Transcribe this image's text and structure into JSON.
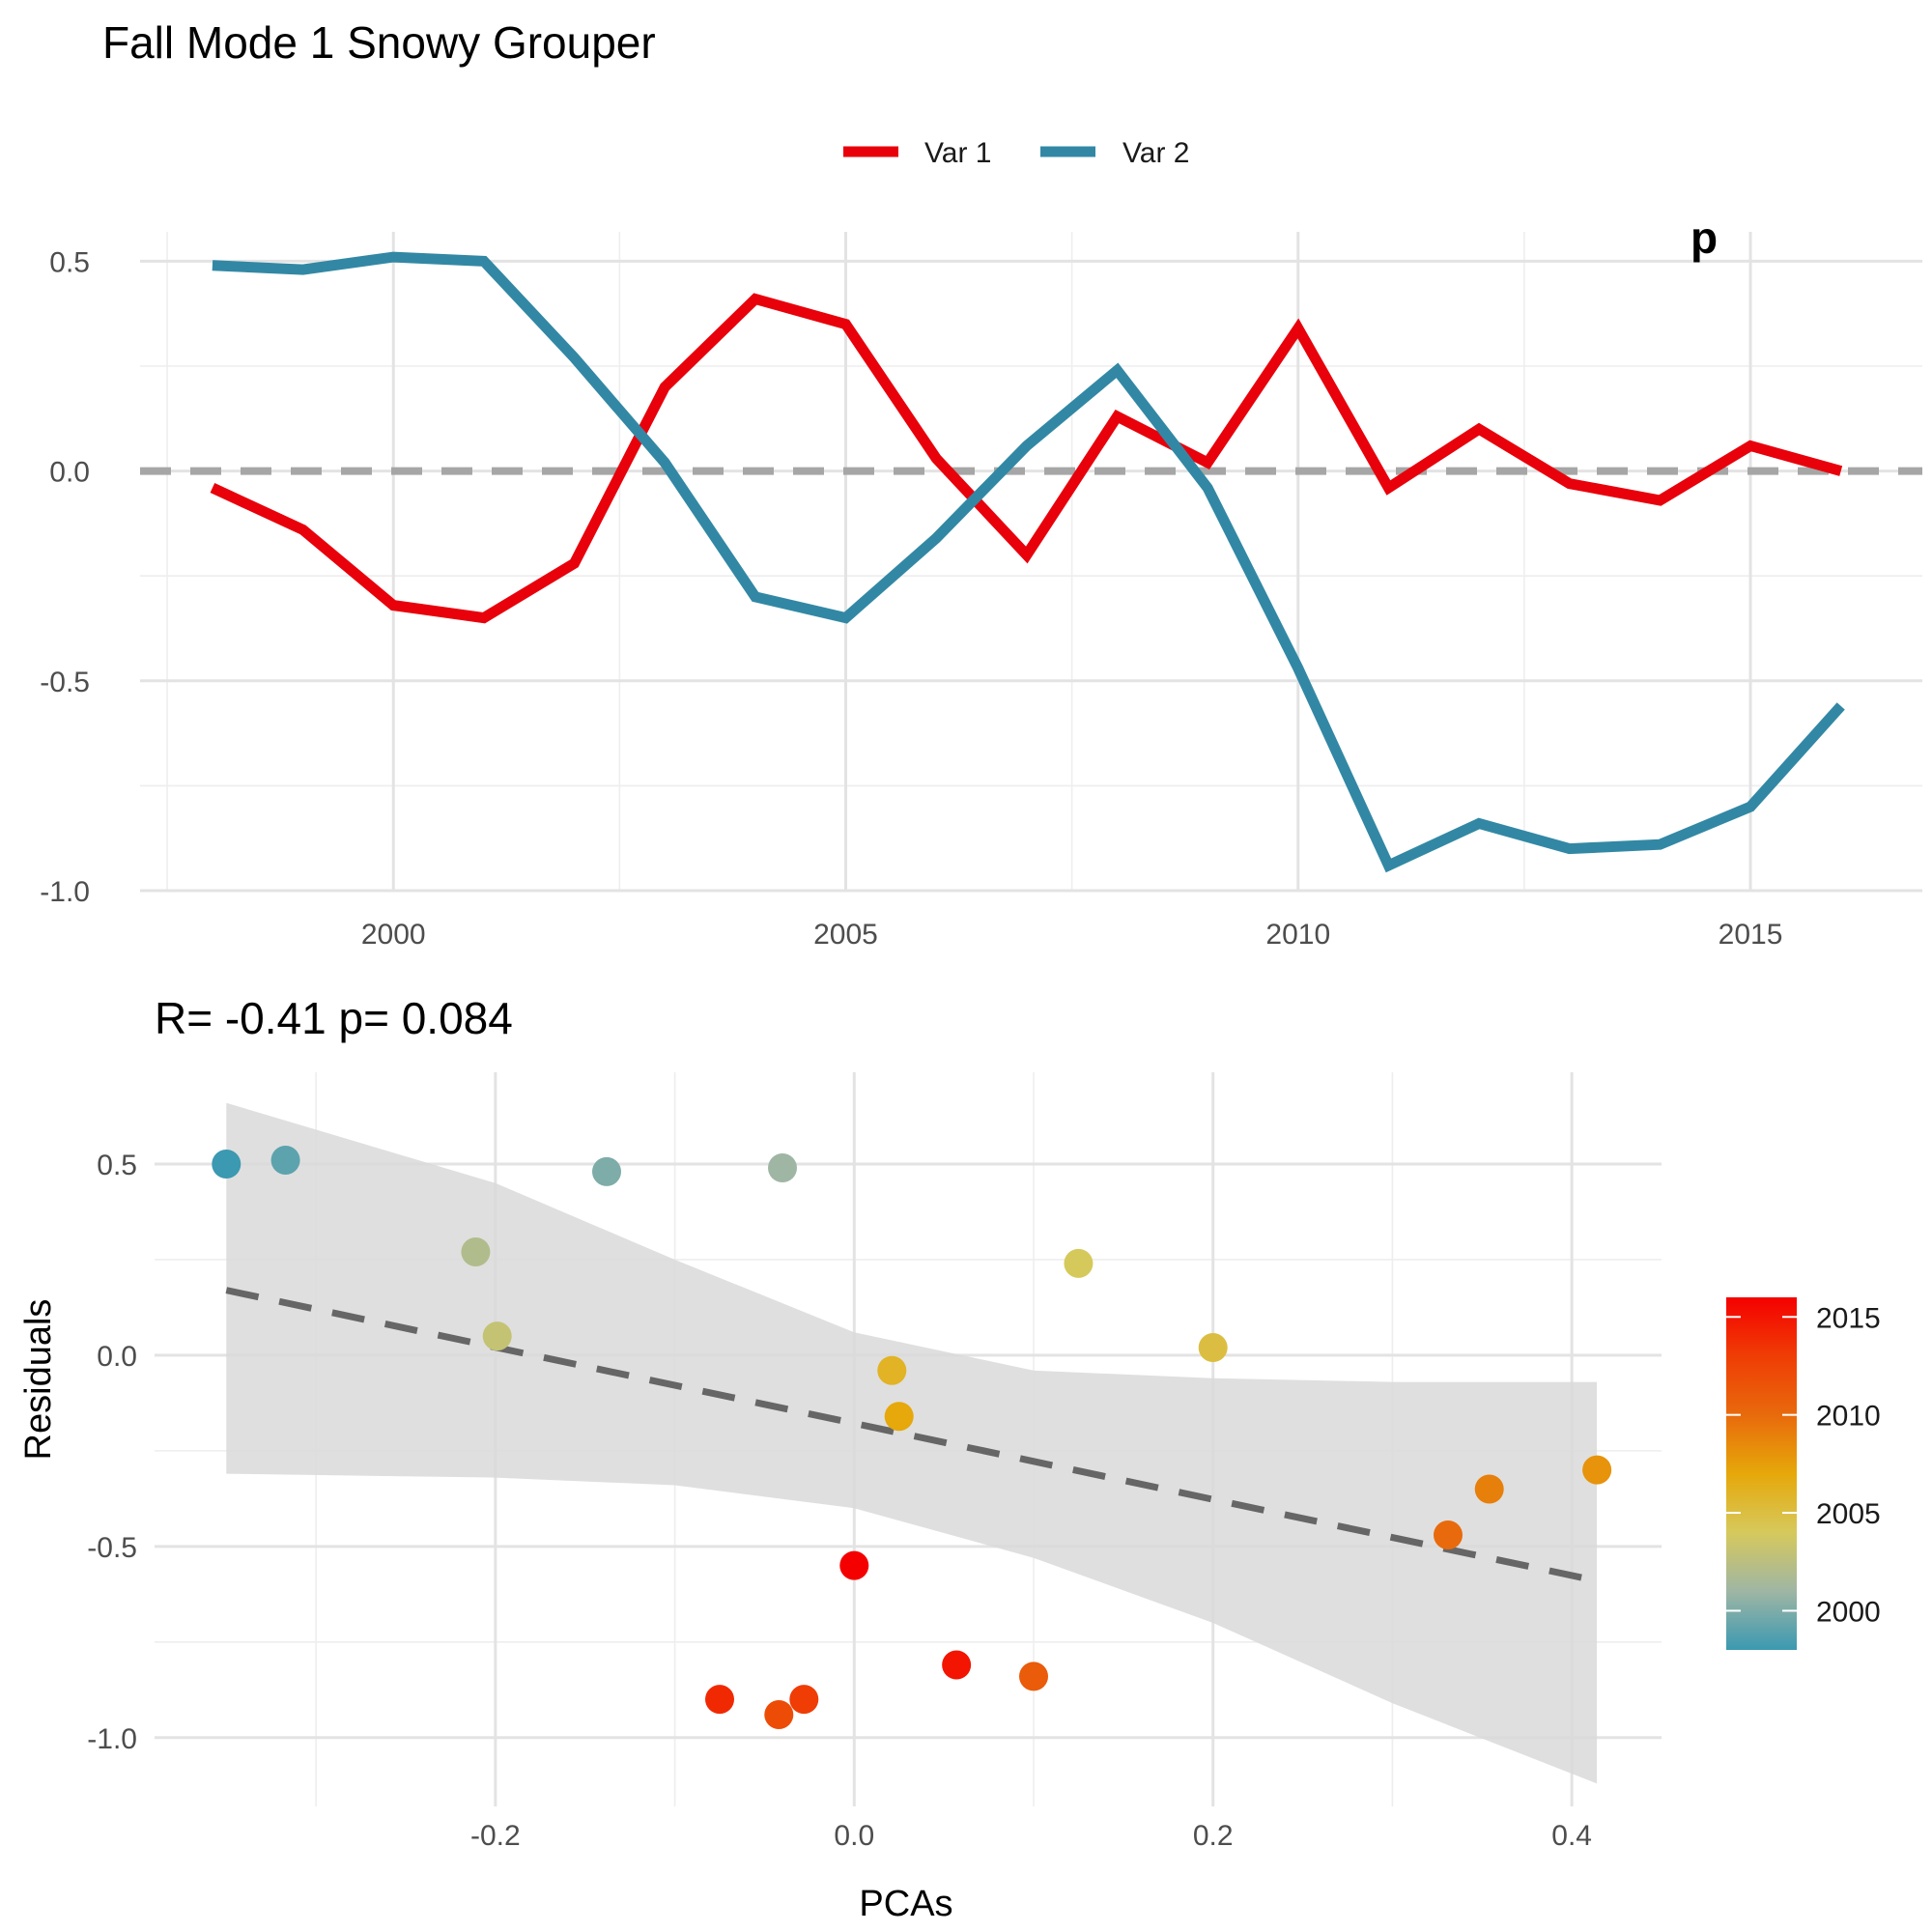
{
  "chart_data": [
    {
      "type": "line",
      "title": "Fall Mode 1 Snowy Grouper",
      "corner_text": "p",
      "x": [
        1998,
        1999,
        2000,
        2001,
        2002,
        2003,
        2004,
        2005,
        2006,
        2007,
        2008,
        2009,
        2010,
        2011,
        2012,
        2013,
        2014,
        2015,
        2016
      ],
      "series": [
        {
          "name": "Var 1",
          "color": "#e8000b",
          "values": [
            -0.04,
            -0.14,
            -0.32,
            -0.35,
            -0.22,
            0.2,
            0.41,
            0.35,
            0.03,
            -0.2,
            0.13,
            0.02,
            0.34,
            -0.04,
            0.1,
            -0.03,
            -0.07,
            0.06,
            0.0
          ]
        },
        {
          "name": "Var 2",
          "color": "#3288a4",
          "values": [
            0.49,
            0.48,
            0.51,
            0.5,
            0.27,
            0.02,
            -0.3,
            -0.35,
            -0.16,
            0.06,
            0.24,
            -0.04,
            -0.47,
            -0.94,
            -0.84,
            -0.9,
            -0.89,
            -0.8,
            -0.56
          ]
        }
      ],
      "reference_line": {
        "y": 0,
        "color": "#a6a6a6",
        "style": "dashed"
      },
      "xticks": [
        2000,
        2005,
        2010,
        2015
      ],
      "xtick_labels": [
        "2000",
        "2005",
        "2010",
        "2015"
      ],
      "yticks": [
        0.5,
        0.0,
        -0.5,
        -1.0
      ],
      "ytick_labels": [
        "0.5",
        "0.0",
        "-0.5",
        "-1.0"
      ],
      "xlim": [
        1997.2,
        2016.9
      ],
      "ylim": [
        -1.0,
        0.57
      ],
      "grid": true,
      "legend_position": "top",
      "xlabel": "",
      "ylabel": ""
    },
    {
      "type": "scatter",
      "title": "R= -0.41  p= 0.084",
      "xlabel": "PCAs",
      "ylabel": "Residuals",
      "points": [
        {
          "x": -0.35,
          "y": 0.5,
          "year": 1998
        },
        {
          "x": -0.317,
          "y": 0.51,
          "year": 1999
        },
        {
          "x": -0.138,
          "y": 0.48,
          "year": 2000
        },
        {
          "x": -0.04,
          "y": 0.49,
          "year": 2001
        },
        {
          "x": -0.211,
          "y": 0.27,
          "year": 2002
        },
        {
          "x": -0.199,
          "y": 0.05,
          "year": 2003
        },
        {
          "x": 0.125,
          "y": 0.24,
          "year": 2004
        },
        {
          "x": 0.2,
          "y": 0.02,
          "year": 2005
        },
        {
          "x": 0.021,
          "y": -0.04,
          "year": 2006
        },
        {
          "x": 0.025,
          "y": -0.16,
          "year": 2007
        },
        {
          "x": 0.414,
          "y": -0.3,
          "year": 2008
        },
        {
          "x": 0.354,
          "y": -0.35,
          "year": 2009
        },
        {
          "x": 0.331,
          "y": -0.47,
          "year": 2010
        },
        {
          "x": 0.1,
          "y": -0.84,
          "year": 2011
        },
        {
          "x": -0.042,
          "y": -0.94,
          "year": 2012
        },
        {
          "x": -0.028,
          "y": -0.9,
          "year": 2013
        },
        {
          "x": -0.075,
          "y": -0.9,
          "year": 2014
        },
        {
          "x": 0.057,
          "y": -0.81,
          "year": 2015
        },
        {
          "x": 0.0,
          "y": -0.55,
          "year": 2016
        }
      ],
      "fit_line": {
        "x": [
          -0.35,
          0.414
        ],
        "y": [
          0.17,
          -0.59
        ],
        "color": "#666666",
        "style": "dashed"
      },
      "confidence_band": {
        "x": [
          -0.35,
          -0.2,
          -0.1,
          0.0,
          0.1,
          0.2,
          0.3,
          0.414
        ],
        "upper": [
          0.66,
          0.45,
          0.25,
          0.06,
          -0.04,
          -0.06,
          -0.07,
          -0.07
        ],
        "lower": [
          -0.31,
          -0.32,
          -0.34,
          -0.4,
          -0.53,
          -0.7,
          -0.91,
          -1.12
        ],
        "color": "#d9d9d9"
      },
      "xticks": [
        -0.2,
        0.0,
        0.2,
        0.4
      ],
      "xtick_labels": [
        "-0.2",
        "0.0",
        "0.2",
        "0.4"
      ],
      "yticks": [
        0.5,
        0.0,
        -0.5,
        -1.0
      ],
      "ytick_labels": [
        "0.5",
        "0.0",
        "-0.5",
        "-1.0"
      ],
      "xlim": [
        -0.39,
        0.45
      ],
      "ylim": [
        -1.18,
        0.74
      ],
      "grid": true,
      "colorbar": {
        "ticks": [
          2015,
          2010,
          2005,
          2000
        ],
        "tick_labels": [
          "2015",
          "2010",
          "2005",
          "2000"
        ],
        "range": [
          1998,
          2016
        ],
        "colors": [
          "#3b99b1",
          "#9fb6a4",
          "#d6c95c",
          "#e6a80a",
          "#e86a0c",
          "#ef3d05",
          "#f50000"
        ],
        "position": "right"
      }
    }
  ]
}
